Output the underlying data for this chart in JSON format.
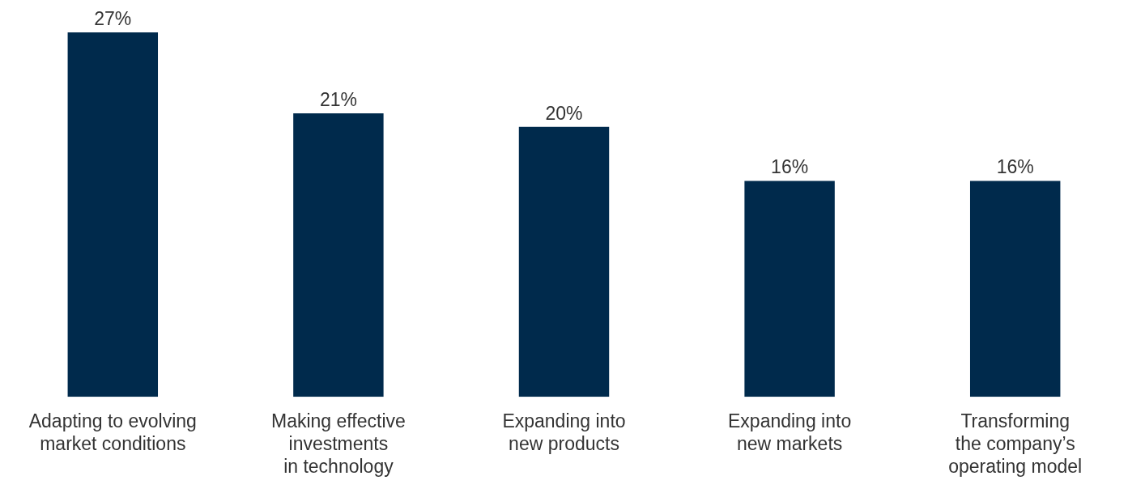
{
  "chart_data": {
    "type": "bar",
    "categories": [
      "Adapting to evolving\nmarket conditions",
      "Making effective\ninvestments\nin technology",
      "Expanding into\nnew products",
      "Expanding into\nnew markets",
      "Transforming\nthe company’s\noperating model"
    ],
    "values": [
      27,
      21,
      20,
      16,
      16
    ],
    "value_labels": [
      "27%",
      "21%",
      "20%",
      "16%",
      "16%"
    ],
    "color": "#002a4c",
    "grid": false,
    "legend": false
  }
}
